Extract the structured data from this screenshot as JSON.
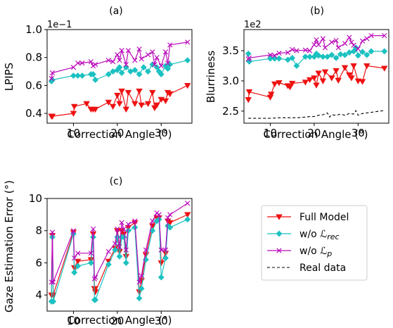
{
  "colors": {
    "full": "#ee1111",
    "worec": "#1cc1c1",
    "wop": "#bb0bbb",
    "real": "#000000"
  },
  "legend": {
    "entries": [
      {
        "label": "Full Model",
        "series": "full",
        "marker": "tri"
      },
      {
        "label": "w/o ℒrec",
        "base": "w/o ℒ",
        "sub": "rec",
        "series": "worec",
        "marker": "diamond"
      },
      {
        "label": "w/o ℒp",
        "base": "w/o ℒ",
        "sub": "p",
        "series": "wop",
        "marker": "x"
      },
      {
        "label": "Real data",
        "series": "real",
        "marker": "none",
        "dashed": true
      }
    ]
  },
  "chart_data": [
    {
      "type": "line",
      "title": "(a)",
      "xlabel": "Correction Angle (°)",
      "ylabel": "LPIPS",
      "offset_text": "1e−1",
      "xlim": [
        4,
        37
      ],
      "ylim": [
        3.3,
        10.0
      ],
      "xticks": [
        10,
        20,
        30
      ],
      "yticks": [
        4,
        6,
        8,
        10
      ],
      "ytick_labels": [
        "0.4",
        "0.6",
        "0.8",
        "1.0"
      ],
      "grid": false,
      "series": [
        {
          "name": "Full Model",
          "key": "full",
          "marker": "tri",
          "x": [
            5,
            5.2,
            10,
            10.2,
            13,
            14,
            14.5,
            15,
            18,
            19,
            20,
            20.5,
            21,
            22,
            22.5,
            24,
            25,
            25.5,
            27,
            28,
            28.5,
            29,
            30,
            31,
            31.5,
            32,
            36
          ],
          "y": [
            3.8,
            3.8,
            4.0,
            4.5,
            4.7,
            4.3,
            4.3,
            4.3,
            4.8,
            4.5,
            5.3,
            4.7,
            5.6,
            4.3,
            5.5,
            4.7,
            5.6,
            4.6,
            4.7,
            5.5,
            4.4,
            4.6,
            5.0,
            4.9,
            5.5,
            5.4,
            6.0
          ]
        },
        {
          "name": "w/o ℒrec",
          "key": "worec",
          "marker": "diamond",
          "x": [
            5,
            5.2,
            10,
            11,
            12,
            14,
            14.5,
            15,
            18,
            19,
            20,
            20.5,
            21,
            22,
            23,
            24,
            25,
            26,
            27,
            28,
            29,
            29.5,
            30,
            31,
            31.5,
            32,
            36
          ],
          "y": [
            6.3,
            6.4,
            6.7,
            6.7,
            6.7,
            6.8,
            6.8,
            6.4,
            6.8,
            7.0,
            7.1,
            7.3,
            6.9,
            7.3,
            7.0,
            7.1,
            6.8,
            7.3,
            7.0,
            7.5,
            7.3,
            7.0,
            6.8,
            7.4,
            7.2,
            7.5,
            7.8
          ]
        },
        {
          "name": "w/o ℒp",
          "key": "wop",
          "marker": "x",
          "x": [
            5,
            5.2,
            10,
            11,
            12,
            14,
            14.5,
            15,
            18,
            19,
            20,
            20.5,
            21,
            22,
            22.5,
            24,
            25,
            25.5,
            27,
            28,
            28.5,
            29,
            30,
            31,
            31.5,
            32,
            36
          ],
          "y": [
            6.5,
            6.9,
            7.3,
            7.6,
            7.6,
            7.7,
            7.4,
            7.5,
            7.8,
            7.7,
            8.2,
            7.8,
            8.5,
            7.5,
            8.5,
            7.8,
            8.6,
            7.9,
            8.2,
            8.4,
            7.5,
            8.0,
            7.4,
            8.4,
            7.6,
            8.9,
            9.1
          ]
        }
      ]
    },
    {
      "type": "line",
      "title": "(b)",
      "xlabel": "Correction Angle (°)",
      "ylabel": "Blurriness",
      "offset_text": "1e2",
      "xlim": [
        4,
        37
      ],
      "ylim": [
        2.3,
        3.85
      ],
      "xticks": [
        10,
        20,
        30
      ],
      "yticks": [
        2.5,
        3.0,
        3.5
      ],
      "ytick_labels": [
        "2.5",
        "3.0",
        "3.5"
      ],
      "grid": false,
      "series": [
        {
          "name": "Full Model",
          "key": "full",
          "marker": "tri",
          "x": [
            5,
            5.2,
            10,
            10.2,
            11,
            12,
            14,
            14.5,
            15,
            18,
            19,
            20,
            20.5,
            21,
            22,
            22.5,
            24,
            25,
            25.5,
            27,
            28,
            28.5,
            29,
            30,
            31,
            32,
            36
          ],
          "y": [
            2.69,
            2.82,
            2.73,
            2.78,
            2.95,
            2.97,
            2.92,
            2.9,
            2.96,
            2.98,
            3.02,
            3.05,
            2.93,
            3.13,
            3.0,
            3.15,
            3.05,
            3.17,
            3.01,
            3.22,
            3.1,
            3.05,
            3.25,
            3.0,
            2.99,
            3.25,
            3.21
          ]
        },
        {
          "name": "w/o ℒrec",
          "key": "worec",
          "marker": "diamond",
          "x": [
            5,
            5.2,
            10,
            11,
            12,
            14,
            15,
            16,
            18,
            19,
            20,
            20.5,
            21,
            22,
            23,
            24,
            25,
            26,
            27,
            28,
            29,
            29.5,
            30,
            31,
            32,
            33,
            36
          ],
          "y": [
            3.45,
            3.32,
            3.37,
            3.37,
            3.37,
            3.35,
            3.38,
            3.25,
            3.4,
            3.4,
            3.4,
            3.45,
            3.42,
            3.4,
            3.4,
            3.43,
            3.38,
            3.44,
            3.43,
            3.47,
            3.49,
            3.55,
            3.42,
            3.48,
            3.43,
            3.49,
            3.49
          ]
        },
        {
          "name": "w/o ℒp",
          "key": "wop",
          "marker": "x",
          "x": [
            5,
            5.2,
            10,
            11,
            12,
            14,
            15,
            16,
            18,
            19,
            20,
            20.5,
            21,
            22,
            22.5,
            24,
            25,
            25.5,
            27,
            28,
            28.5,
            29,
            30,
            31,
            32,
            33,
            36
          ],
          "y": [
            3.36,
            3.38,
            3.43,
            3.42,
            3.46,
            3.47,
            3.52,
            3.5,
            3.51,
            3.5,
            3.6,
            3.68,
            3.6,
            3.7,
            3.55,
            3.64,
            3.67,
            3.55,
            3.62,
            3.72,
            3.64,
            3.59,
            3.53,
            3.66,
            3.7,
            3.75,
            3.75
          ]
        },
        {
          "name": "Real data",
          "key": "real",
          "marker": "none",
          "dashed": true,
          "x": [
            5,
            7,
            9,
            10,
            12,
            14,
            16,
            18,
            19,
            20,
            21,
            22,
            23,
            23.5,
            24,
            25,
            26,
            27,
            28,
            29,
            29.5,
            30,
            31,
            32,
            34,
            36
          ],
          "y": [
            2.38,
            2.38,
            2.38,
            2.38,
            2.39,
            2.39,
            2.39,
            2.4,
            2.41,
            2.41,
            2.43,
            2.44,
            2.47,
            2.4,
            2.44,
            2.43,
            2.45,
            2.43,
            2.46,
            2.45,
            2.51,
            2.43,
            2.46,
            2.47,
            2.49,
            2.51
          ]
        }
      ]
    },
    {
      "type": "line",
      "title": "(c)",
      "xlabel": "Correction Angle (°)",
      "ylabel": "Gaze Estimation Error (°)",
      "offset_text": "",
      "xlim": [
        4,
        37
      ],
      "ylim": [
        3.0,
        10.0
      ],
      "xticks": [
        10,
        20,
        30
      ],
      "yticks": [
        4,
        6,
        8,
        10
      ],
      "ytick_labels": [
        "4",
        "6",
        "8",
        "10"
      ],
      "grid": false,
      "series": [
        {
          "name": "Full Model",
          "key": "full",
          "marker": "tri",
          "x": [
            5,
            5.2,
            5.4,
            10,
            10.2,
            11,
            14,
            14.5,
            14.8,
            15,
            18,
            19.5,
            20,
            20.5,
            21,
            21.5,
            22,
            22.5,
            24,
            25,
            25.5,
            26.5,
            28,
            29,
            29.5,
            30,
            31,
            31.5,
            32,
            36
          ],
          "y": [
            4.0,
            7.7,
            4.0,
            7.9,
            5.7,
            6.1,
            6.2,
            7.8,
            4.4,
            4.2,
            6.1,
            6.9,
            8.0,
            6.7,
            8.0,
            7.8,
            6.4,
            8.2,
            8.5,
            4.2,
            4.9,
            6.5,
            8.3,
            8.8,
            8.8,
            6.0,
            6.6,
            8.6,
            8.5,
            9.0
          ]
        },
        {
          "name": "w/o ℒrec",
          "key": "worec",
          "marker": "diamond",
          "x": [
            5,
            5.2,
            5.4,
            10,
            10.2,
            11,
            14,
            14.5,
            14.8,
            15,
            18,
            19.5,
            20,
            20.5,
            21,
            21.5,
            22,
            22.5,
            24,
            25,
            25.5,
            26.5,
            28,
            29,
            29.5,
            30,
            31,
            31.5,
            32,
            36
          ],
          "y": [
            3.6,
            7.6,
            3.6,
            7.8,
            5.4,
            5.8,
            6.0,
            7.6,
            3.7,
            3.7,
            5.9,
            6.8,
            7.6,
            6.4,
            7.6,
            7.6,
            6.0,
            8.0,
            8.2,
            3.8,
            4.4,
            6.2,
            8.0,
            8.6,
            8.7,
            5.1,
            6.3,
            8.3,
            8.2,
            8.7
          ]
        },
        {
          "name": "w/o ℒp",
          "key": "wop",
          "marker": "x",
          "x": [
            5,
            5.2,
            5.4,
            10,
            10.2,
            11,
            14,
            14.5,
            14.8,
            15,
            18,
            19.5,
            20,
            20.5,
            21,
            21.5,
            22,
            22.5,
            24,
            25,
            25.5,
            26.5,
            28,
            29,
            29.5,
            30,
            31,
            31.5,
            32,
            36
          ],
          "y": [
            4.8,
            7.9,
            4.8,
            8.0,
            6.3,
            6.6,
            6.6,
            8.1,
            5.0,
            5.1,
            6.7,
            7.2,
            8.1,
            7.0,
            8.5,
            8.1,
            6.8,
            8.4,
            8.6,
            4.8,
            5.2,
            6.8,
            8.6,
            9.1,
            9.0,
            6.8,
            6.8,
            8.8,
            9.0,
            9.7
          ]
        }
      ]
    }
  ]
}
